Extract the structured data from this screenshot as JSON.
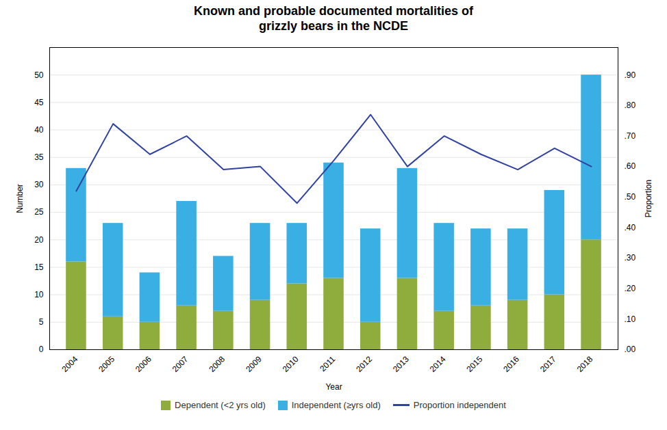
{
  "chart_data": {
    "type": "bar",
    "title": "Known and probable documented mortalities of\ngrizzly bears in the NCDE",
    "xlabel": "Year",
    "ylabel": "Number",
    "y2label": "Proportion",
    "categories": [
      "2004",
      "2005",
      "2006",
      "2007",
      "2008",
      "2009",
      "2010",
      "2011",
      "2012",
      "2013",
      "2014",
      "2015",
      "2016",
      "2017",
      "2018"
    ],
    "stacked": true,
    "grid": true,
    "legend": "bottom",
    "ylim": [
      0,
      55
    ],
    "yticks": [
      0,
      5,
      10,
      15,
      20,
      25,
      30,
      35,
      40,
      45,
      50
    ],
    "y2lim": [
      0.0,
      0.99
    ],
    "y2ticks": [
      {
        "value": 0.0,
        "label": ".00"
      },
      {
        "value": 0.1,
        "label": ".10"
      },
      {
        "value": 0.2,
        "label": ".20"
      },
      {
        "value": 0.3,
        "label": ".30"
      },
      {
        "value": 0.4,
        "label": ".40"
      },
      {
        "value": 0.5,
        "label": ".50"
      },
      {
        "value": 0.6,
        "label": ".60"
      },
      {
        "value": 0.7,
        "label": ".70"
      },
      {
        "value": 0.8,
        "label": ".80"
      },
      {
        "value": 0.9,
        "label": ".90"
      }
    ],
    "series": [
      {
        "name": "Dependent (<2 yrs old)",
        "type": "bar",
        "color": "#8fad3c",
        "values": [
          16,
          6,
          5,
          8,
          7,
          9,
          12,
          13,
          5,
          13,
          7,
          8,
          9,
          10,
          20
        ]
      },
      {
        "name": "Independent (≥yrs old)",
        "type": "bar",
        "color": "#3aafe4",
        "values": [
          17,
          17,
          9,
          19,
          10,
          14,
          11,
          21,
          17,
          20,
          16,
          14,
          13,
          19,
          30
        ]
      },
      {
        "name": "Proportion independent",
        "type": "line",
        "axis": "y2",
        "color": "#3042a0",
        "values": [
          0.52,
          0.74,
          0.64,
          0.7,
          0.59,
          0.6,
          0.48,
          0.62,
          0.77,
          0.6,
          0.7,
          0.64,
          0.59,
          0.66,
          0.6
        ]
      }
    ]
  }
}
